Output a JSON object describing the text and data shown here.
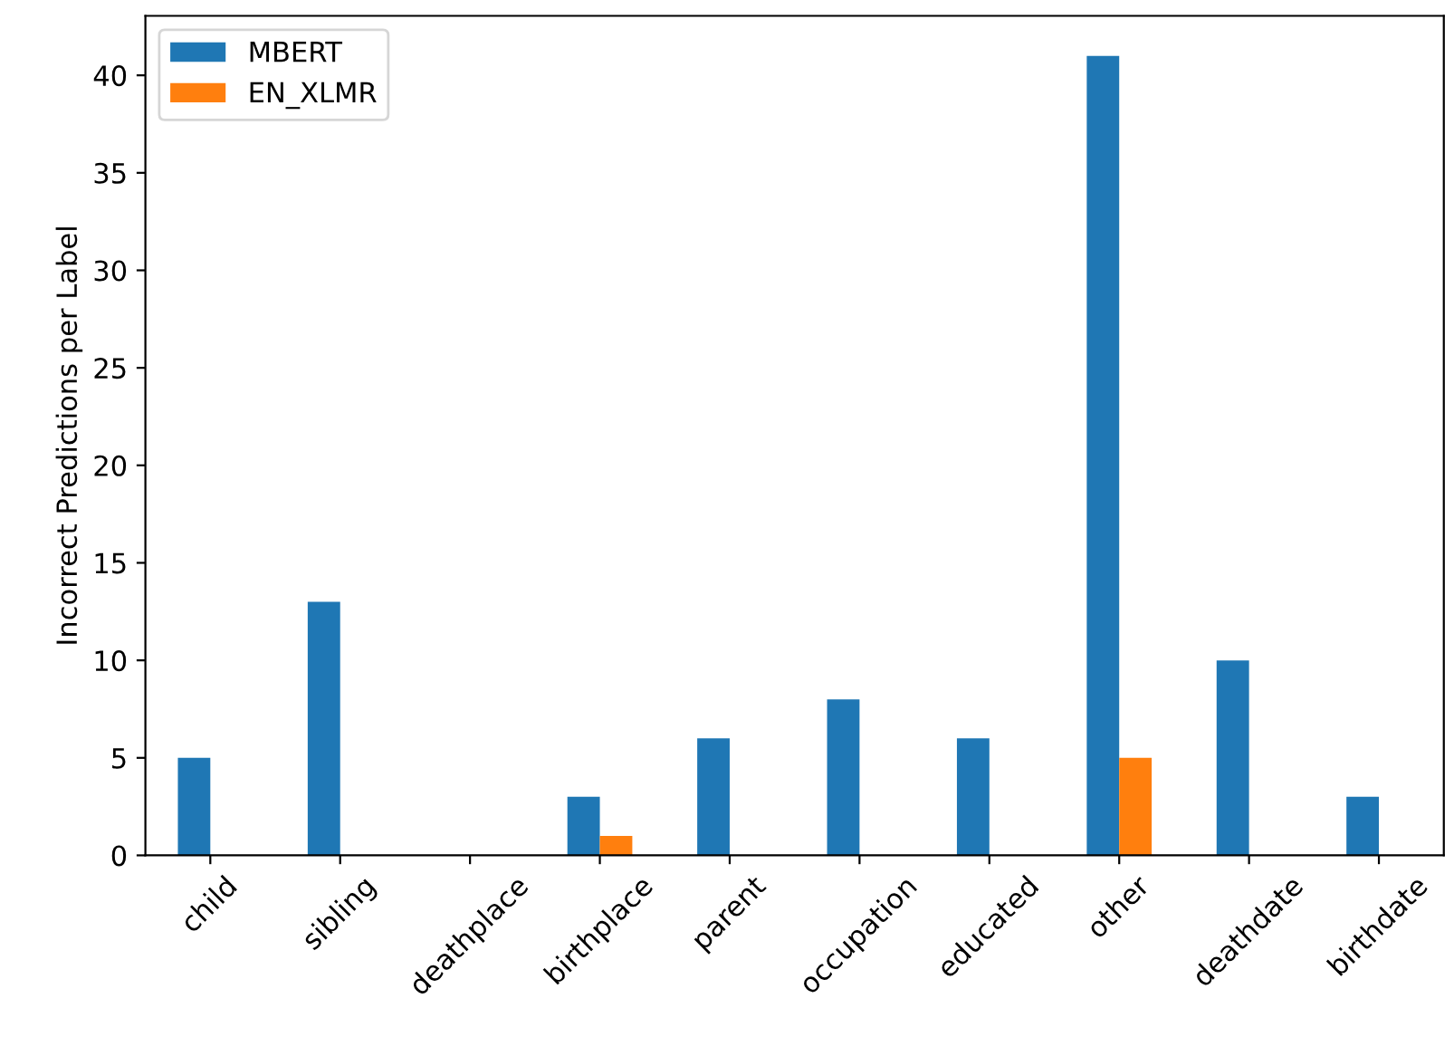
{
  "chart_data": {
    "type": "bar",
    "ylabel": "Incorrect Predictions per Label",
    "categories": [
      "child",
      "sibling",
      "deathplace",
      "birthplace",
      "parent",
      "occupation",
      "educated",
      "other",
      "deathdate",
      "birthdate"
    ],
    "series": [
      {
        "name": "MBERT",
        "color": "#1f77b4",
        "values": [
          5,
          13,
          0,
          3,
          6,
          8,
          6,
          41,
          10,
          3
        ]
      },
      {
        "name": "EN_XLMR",
        "color": "#ff7f0e",
        "values": [
          0,
          0,
          0,
          1,
          0,
          0,
          0,
          5,
          0,
          0
        ]
      }
    ],
    "ylim": [
      0,
      43.05
    ],
    "yticks": [
      0,
      5,
      10,
      15,
      20,
      25,
      30,
      35,
      40
    ],
    "grid": false,
    "legend": "top left"
  }
}
